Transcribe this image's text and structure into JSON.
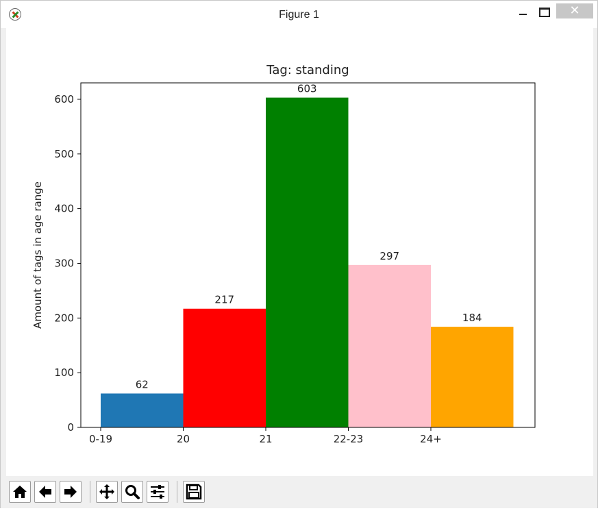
{
  "window": {
    "title": "Figure 1",
    "close_glyph": "✕"
  },
  "toolbar": {
    "buttons": [
      "home-icon",
      "back-arrow-icon",
      "forward-arrow-icon",
      "pan-icon",
      "zoom-icon",
      "configure-subplots-icon",
      "save-icon"
    ]
  },
  "chart_data": {
    "type": "bar",
    "title": "Tag: standing",
    "xlabel": "",
    "ylabel": "Amount of tags in age range",
    "categories": [
      "0-19",
      "20",
      "21",
      "22-23",
      "24+"
    ],
    "values": [
      62,
      217,
      603,
      297,
      184
    ],
    "data_labels": [
      "62",
      "217",
      "603",
      "297",
      "184"
    ],
    "colors": [
      "#1f77b4",
      "#ff0000",
      "#008000",
      "#ffc0cb",
      "#ffa500"
    ],
    "ylim": [
      0,
      630
    ],
    "yticks": [
      0,
      100,
      200,
      300,
      400,
      500,
      600
    ],
    "grid": false,
    "legend": "none"
  }
}
